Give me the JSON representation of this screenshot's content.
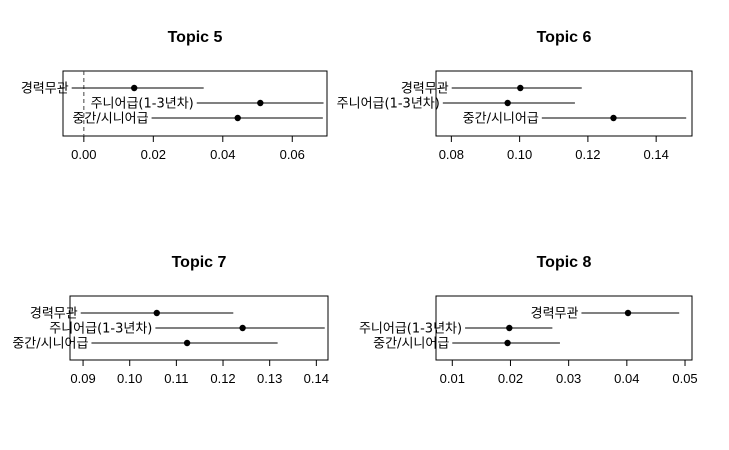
{
  "chart_data": [
    {
      "type": "scatter",
      "title": "Topic 5",
      "xlim": [
        -0.006,
        0.07
      ],
      "xticks": [
        0.0,
        0.02,
        0.04,
        0.06
      ],
      "xtick_labels": [
        "0.00",
        "0.02",
        "0.04",
        "0.06"
      ],
      "reference_line": 0,
      "points": [
        {
          "label": "경력무관",
          "estimate": 0.0145,
          "lower": -0.0035,
          "upper": 0.0345
        },
        {
          "label": "주니어급(1-3년차)",
          "estimate": 0.0508,
          "lower": 0.0325,
          "upper": 0.069
        },
        {
          "label": "중간/시니어급",
          "estimate": 0.0443,
          "lower": 0.0195,
          "upper": 0.0688
        }
      ]
    },
    {
      "type": "scatter",
      "title": "Topic 6",
      "xlim": [
        0.0755,
        0.1505
      ],
      "xticks": [
        0.08,
        0.1,
        0.12,
        0.14
      ],
      "xtick_labels": [
        "0.08",
        "0.10",
        "0.12",
        "0.14"
      ],
      "points": [
        {
          "label": "경력무관",
          "estimate": 0.1002,
          "lower": 0.0801,
          "upper": 0.1182
        },
        {
          "label": "주니어급(1-3년차)",
          "estimate": 0.0965,
          "lower": 0.0775,
          "upper": 0.1162
        },
        {
          "label": "중간/시니어급",
          "estimate": 0.1275,
          "lower": 0.1065,
          "upper": 0.1488
        }
      ]
    },
    {
      "type": "scatter",
      "title": "Topic 7",
      "xlim": [
        0.0872,
        0.1425
      ],
      "xticks": [
        0.09,
        0.1,
        0.11,
        0.12,
        0.13,
        0.14
      ],
      "xtick_labels": [
        "0.09",
        "0.10",
        "0.11",
        "0.12",
        "0.13",
        "0.14"
      ],
      "points": [
        {
          "label": "경력무관",
          "estimate": 0.1058,
          "lower": 0.0895,
          "upper": 0.1222
        },
        {
          "label": "주니어급(1-3년차)",
          "estimate": 0.1242,
          "lower": 0.1055,
          "upper": 0.1418
        },
        {
          "label": "중간/시니어급",
          "estimate": 0.1123,
          "lower": 0.0918,
          "upper": 0.1317
        }
      ]
    },
    {
      "type": "scatter",
      "title": "Topic 8",
      "xlim": [
        0.0072,
        0.0512
      ],
      "xticks": [
        0.01,
        0.02,
        0.03,
        0.04,
        0.05
      ],
      "xtick_labels": [
        "0.01",
        "0.02",
        "0.03",
        "0.04",
        "0.05"
      ],
      "points": [
        {
          "label": "경력무관",
          "estimate": 0.0402,
          "lower": 0.0322,
          "upper": 0.049
        },
        {
          "label": "주니어급(1-3년차)",
          "estimate": 0.0198,
          "lower": 0.0122,
          "upper": 0.0272
        },
        {
          "label": "중간/시니어급",
          "estimate": 0.0195,
          "lower": 0.01,
          "upper": 0.0285
        }
      ]
    }
  ]
}
